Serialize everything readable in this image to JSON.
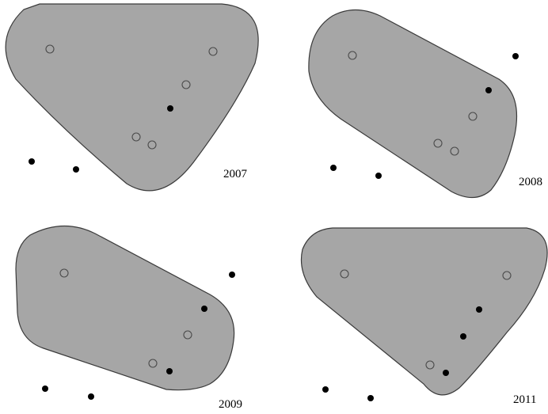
{
  "panels": [
    {
      "year": "2007"
    },
    {
      "year": "2008"
    },
    {
      "year": "2009"
    },
    {
      "year": "2011"
    }
  ],
  "colors": {
    "region_fill": "#a6a6a6",
    "region_stroke": "#3a3a3a",
    "open_point_stroke": "#4a4a4a",
    "filled_point": "#000000"
  }
}
